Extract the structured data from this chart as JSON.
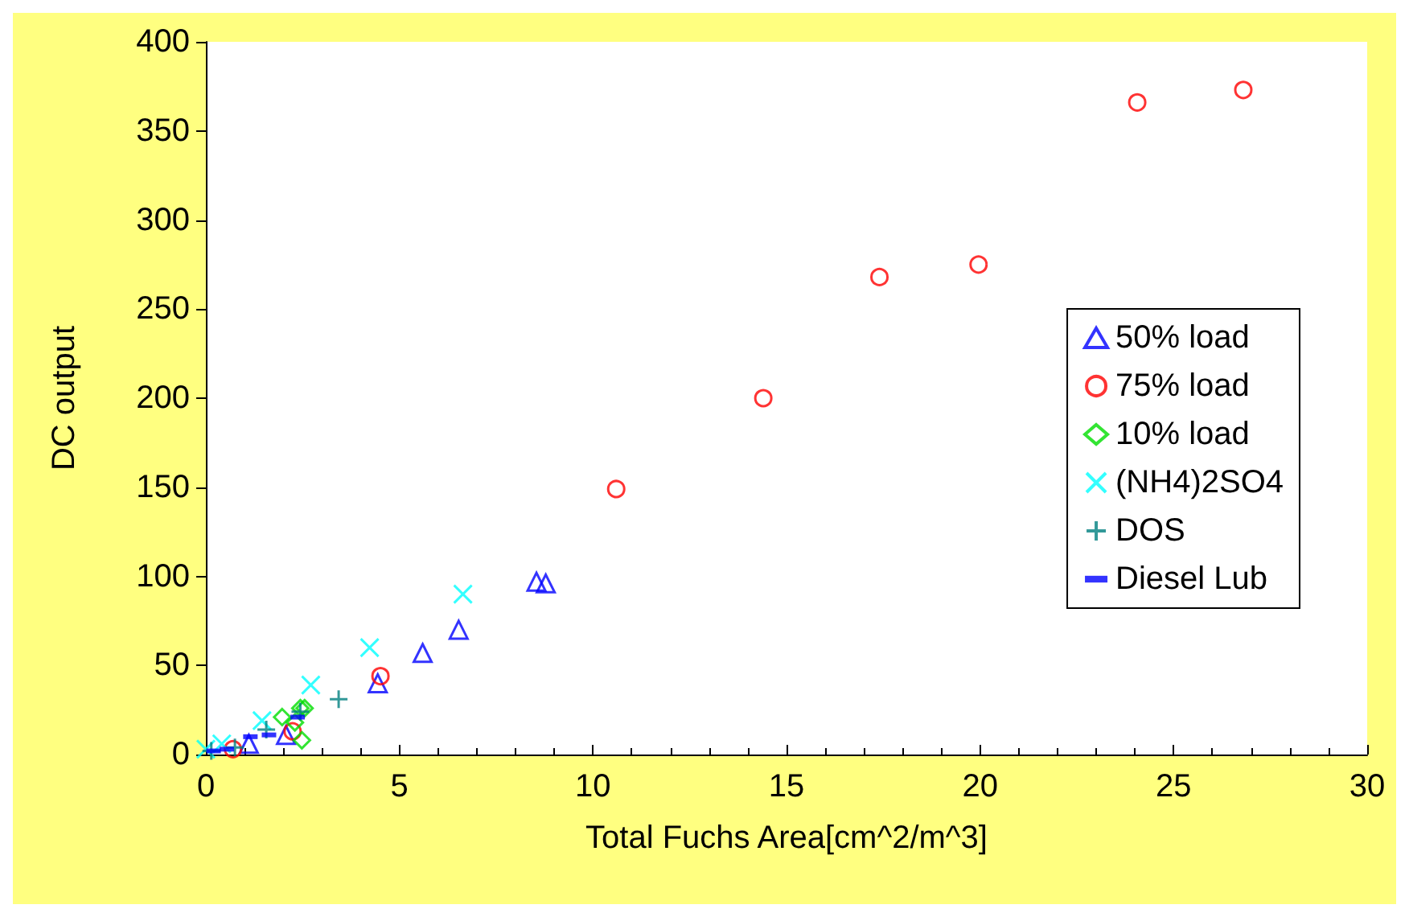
{
  "chart_data": {
    "type": "scatter",
    "xlabel": "Total Fuchs Area[cm^2/m^3]",
    "ylabel": "DC output",
    "xlim": [
      0,
      30
    ],
    "xticks": [
      0,
      5,
      10,
      15,
      20,
      25,
      30
    ],
    "ylim": [
      0,
      400
    ],
    "yticks": [
      0,
      50,
      100,
      150,
      200,
      250,
      300,
      350,
      400
    ],
    "grid": false,
    "legend": "right",
    "series": [
      {
        "name": "50% load",
        "color": "#0000ff",
        "marker": "triangle",
        "x": [
          8.54,
          8.78,
          6.53,
          5.6,
          4.44,
          2.07,
          1.11
        ],
        "values": [
          97,
          96,
          70,
          57,
          40,
          11,
          6
        ]
      },
      {
        "name": "75% load",
        "color": "#ff0000",
        "marker": "circle",
        "x": [
          4.51,
          10.6,
          14.4,
          17.4,
          19.96,
          24.06,
          26.8,
          2.24,
          0.7
        ],
        "values": [
          44,
          149,
          200,
          268,
          275,
          366,
          373,
          13,
          3
        ]
      },
      {
        "name": "10% load",
        "color": "#00dd00",
        "marker": "diamond",
        "x": [
          1.97,
          2.44,
          2.55,
          2.48,
          2.3
        ],
        "values": [
          21,
          26,
          26,
          8,
          18
        ]
      },
      {
        "name": "(NH4)2SO4",
        "color": "#00ffff",
        "marker": "x",
        "x": [
          6.64,
          4.23,
          2.71,
          1.45,
          0.41,
          0
        ],
        "values": [
          90,
          60,
          39,
          19,
          6,
          3
        ]
      },
      {
        "name": "DOS",
        "color": "#008080",
        "marker": "cross",
        "x": [
          3.43,
          2.44,
          1.56,
          0.75,
          0.14
        ],
        "values": [
          31,
          24,
          14,
          4,
          2
        ]
      },
      {
        "name": "Diesel Lub",
        "color": "#0000ff",
        "marker": "square",
        "x": [
          2.37,
          1.63,
          1.15,
          0.54,
          0.2
        ],
        "values": [
          21,
          11,
          10,
          3,
          2
        ]
      }
    ]
  }
}
